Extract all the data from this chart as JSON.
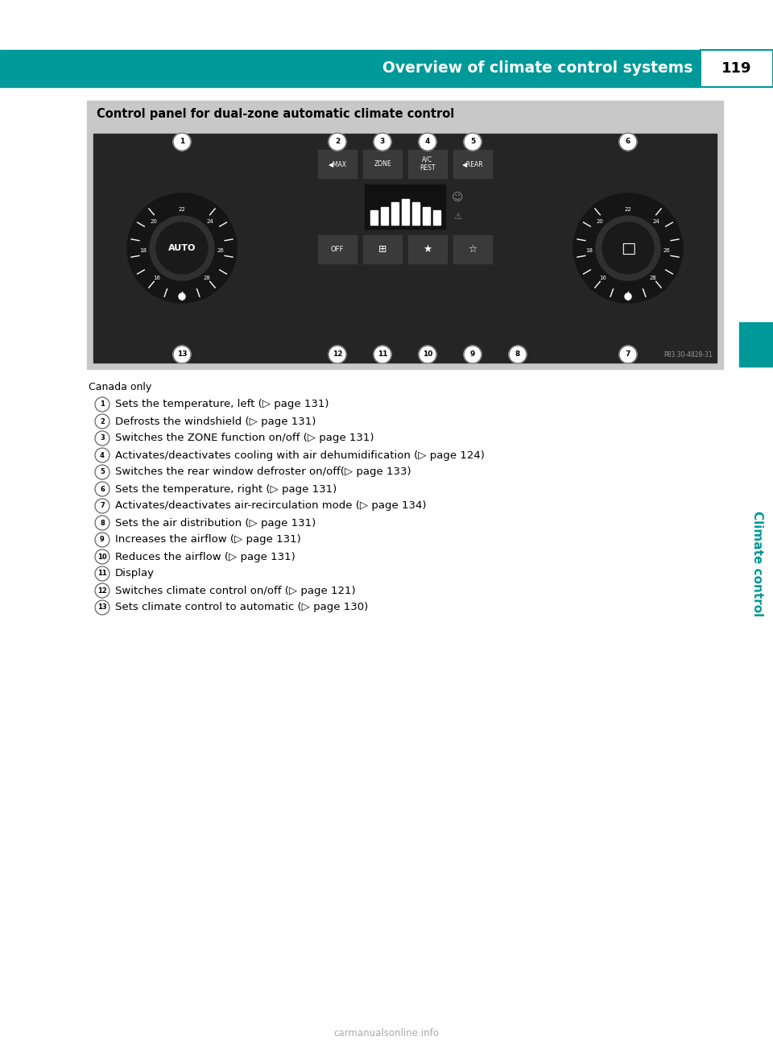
{
  "page_title": "Overview of climate control systems",
  "page_number": "119",
  "header_color": "#009999",
  "header_text_color": "#ffffff",
  "section_title": "Control panel for dual-zone automatic climate control",
  "section_title_bg": "#c8c8c8",
  "section_title_color": "#000000",
  "canada_only_text": "Canada only",
  "items": [
    {
      "num": "1",
      "text": "Sets the temperature, left (▷ page 131)"
    },
    {
      "num": "2",
      "text": "Defrosts the windshield (▷ page 131)"
    },
    {
      "num": "3",
      "text": "Switches the ZONE function on/off (▷ page 131)"
    },
    {
      "num": "4",
      "text": "Activates/deactivates cooling with air dehumidification (▷ page 124)"
    },
    {
      "num": "5",
      "text": "Switches the rear window defroster on/off(▷ page 133)"
    },
    {
      "num": "6",
      "text": "Sets the temperature, right (▷ page 131)"
    },
    {
      "num": "7",
      "text": "Activates/deactivates air-recirculation mode (▷ page 134)"
    },
    {
      "num": "8",
      "text": "Sets the air distribution (▷ page 131)"
    },
    {
      "num": "9",
      "text": "Increases the airflow (▷ page 131)"
    },
    {
      "num": "10",
      "text": "Reduces the airflow (▷ page 131)"
    },
    {
      "num": "11",
      "text": "Display"
    },
    {
      "num": "12",
      "text": "Switches climate control on/off (▷ page 121)"
    },
    {
      "num": "13",
      "text": "Sets climate control to automatic (▷ page 130)"
    }
  ],
  "sidebar_color": "#009999",
  "sidebar_text": "Climate control",
  "footer_text": "carmanualsonline.info",
  "bg_color": "#ffffff",
  "image_panel_bg": "#c8c8c8",
  "panel_dark_bg": "#252525"
}
